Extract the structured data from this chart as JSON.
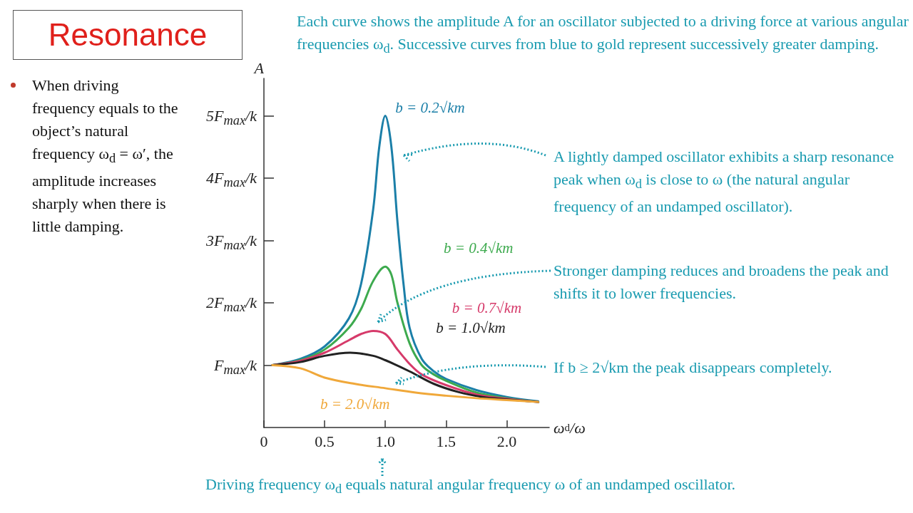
{
  "chart_data": {
    "type": "line",
    "title": "Resonance",
    "xlabel": "ω$_{d}$/ω",
    "ylabel": "A",
    "xlim": [
      0,
      2.35
    ],
    "ylim": [
      0,
      5.6
    ],
    "xticks": [
      0,
      0.5,
      {
        "value": 1,
        "label": "1.0"
      },
      1.5,
      {
        "value": 2,
        "label": "2.0"
      }
    ],
    "yticks": [
      {
        "value": 1,
        "label": "F$_{max}$/k"
      },
      {
        "value": 2,
        "label": "2F$_{max}$/k"
      },
      {
        "value": 3,
        "label": "3F$_{max}$/k"
      },
      {
        "value": 4,
        "label": "4F$_{max}$/k"
      },
      {
        "value": 5,
        "label": "5F$_{max}$/k"
      }
    ],
    "grid": false,
    "legend": false,
    "marker": "none",
    "line_style": "solid",
    "series": [
      {
        "name": "b = 0.2√km",
        "color": "#1b7fa8",
        "x": [
          0.07,
          0.3,
          0.5,
          0.7,
          0.8,
          0.9,
          0.95,
          1.0,
          1.05,
          1.1,
          1.15,
          1.2,
          1.3,
          1.4,
          1.5,
          1.75,
          2.0,
          2.26
        ],
        "values": [
          1.0,
          1.1,
          1.3,
          1.75,
          2.3,
          3.5,
          4.5,
          5.0,
          4.5,
          3.3,
          2.3,
          1.6,
          1.1,
          0.9,
          0.78,
          0.6,
          0.49,
          0.42
        ]
      },
      {
        "name": "b = 0.4√km",
        "color": "#3daa4e",
        "x": [
          0.07,
          0.3,
          0.5,
          0.7,
          0.8,
          0.9,
          1.0,
          1.05,
          1.1,
          1.2,
          1.3,
          1.4,
          1.5,
          1.75,
          2.0,
          2.26
        ],
        "values": [
          1.0,
          1.08,
          1.25,
          1.6,
          1.9,
          2.35,
          2.58,
          2.45,
          2.0,
          1.35,
          1.0,
          0.85,
          0.75,
          0.56,
          0.47,
          0.41
        ]
      },
      {
        "name": "b = 0.7√km",
        "color": "#d63a6a",
        "x": [
          0.07,
          0.3,
          0.5,
          0.7,
          0.8,
          0.9,
          1.0,
          1.1,
          1.2,
          1.3,
          1.5,
          1.75,
          2.0,
          2.26
        ],
        "values": [
          1.0,
          1.07,
          1.2,
          1.4,
          1.5,
          1.55,
          1.5,
          1.25,
          1.02,
          0.85,
          0.68,
          0.53,
          0.46,
          0.41
        ]
      },
      {
        "name": "b = 1.0√km",
        "color": "#222222",
        "x": [
          0.07,
          0.3,
          0.5,
          0.71,
          0.9,
          1.0,
          1.2,
          1.4,
          1.6,
          1.8,
          2.0,
          2.26
        ],
        "values": [
          1.0,
          1.05,
          1.15,
          1.2,
          1.15,
          1.08,
          0.9,
          0.7,
          0.57,
          0.49,
          0.45,
          0.41
        ]
      },
      {
        "name": "b = 2.0√km",
        "color": "#f0a83a",
        "x": [
          0.07,
          0.3,
          0.5,
          0.75,
          1.0,
          1.25,
          1.5,
          1.75,
          2.0,
          2.26
        ],
        "values": [
          1.0,
          0.95,
          0.8,
          0.7,
          0.63,
          0.56,
          0.51,
          0.47,
          0.44,
          0.41
        ]
      }
    ],
    "annotations": [
      "Each curve shows the amplitude A for an oscillator subjected to a driving force at various angular frequencies ω$_{d}$. Successive curves from blue to gold represent successively greater damping.",
      "A lightly damped oscillator exhibits a sharp resonance peak when ω$_{d}$ is close to ω (the natural angular frequency of an undamped oscillator).",
      "Stronger damping reduces and broadens the peak and shifts it to lower frequencies.",
      "If b ≥ 2√km the peak disappears completely.",
      "Driving frequency ω$_{d}$ equals natural angular frequency ω of an undamped oscillator.",
      "When driving frequency equals to the object’s natural frequency ω$_{d}$ = ω′, the amplitude increases sharply when there is little damping."
    ]
  }
}
